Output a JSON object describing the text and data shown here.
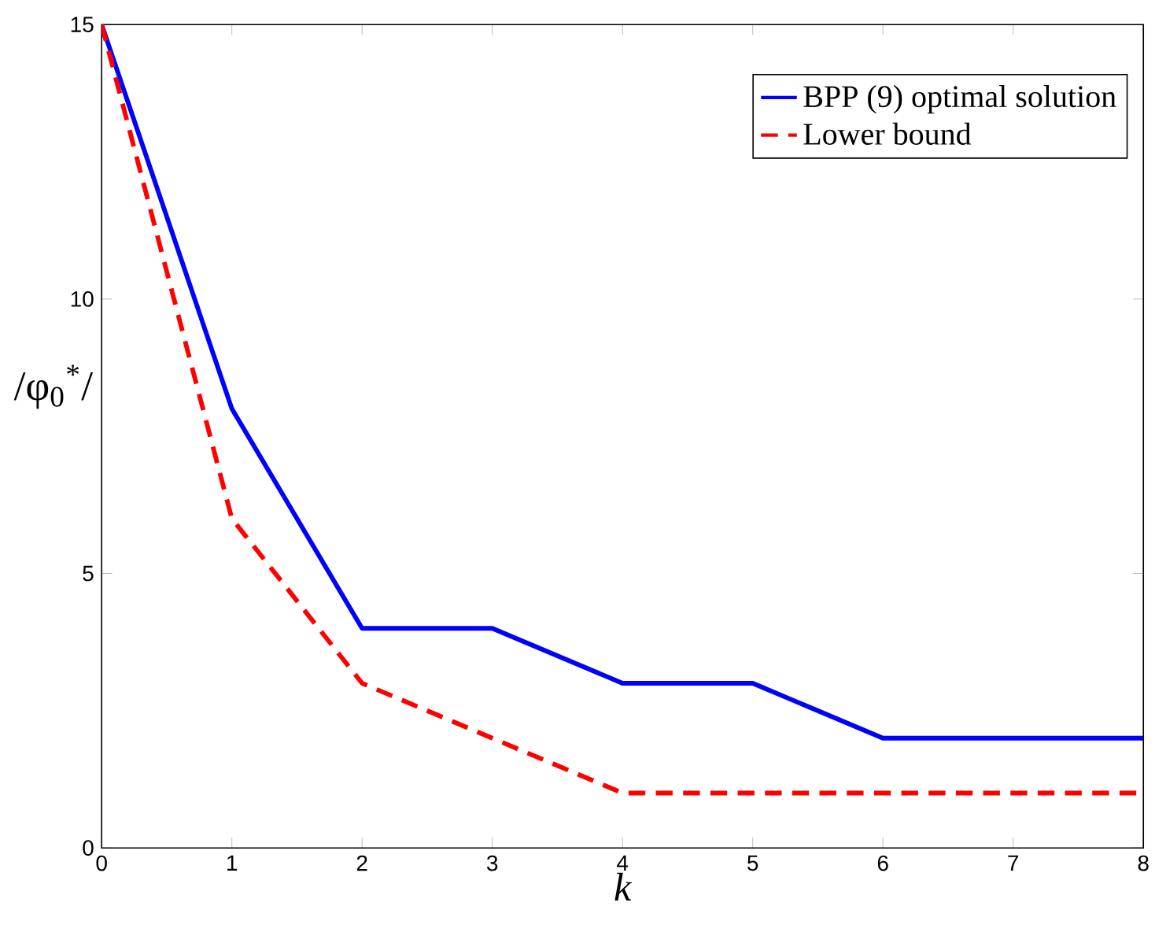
{
  "chart_data": {
    "type": "line",
    "xlabel": "k",
    "ylabel": "/φ$_{0}$$^{*}$/",
    "x": [
      0,
      1,
      2,
      3,
      4,
      5,
      6,
      7,
      8
    ],
    "series": [
      {
        "name": "BPP (9) optimal solution",
        "color": "#0000ff",
        "line_style": "solid",
        "values": [
          15,
          8,
          4,
          4,
          3,
          3,
          2,
          2,
          2
        ]
      },
      {
        "name": "Lower bound",
        "color": "#ff0000",
        "line_style": "dashed",
        "values": [
          15,
          6,
          3,
          2,
          1,
          1,
          1,
          1,
          1
        ]
      }
    ],
    "xlim": [
      0,
      8
    ],
    "ylim": [
      0,
      15
    ],
    "xticks": [
      0,
      1,
      2,
      3,
      4,
      5,
      6,
      7,
      8
    ],
    "yticks": [
      0,
      5,
      10,
      15
    ],
    "legend": "top right"
  }
}
